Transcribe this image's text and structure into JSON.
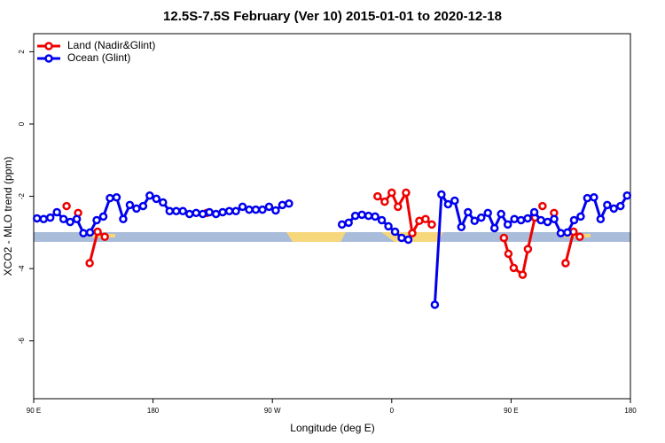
{
  "chart_data": {
    "type": "line",
    "title": "12.5S-7.5S February (Ver 10)   2015-01-01 to 2020-12-18",
    "x_label": "Longitude (deg E)",
    "y_label": "XCO2 - MLO trend (ppm)",
    "xlim": [
      90,
      540
    ],
    "xticks": [
      {
        "value": 90,
        "label": "90 E"
      },
      180,
      {
        "value": 270,
        "label": "90 W"
      },
      {
        "value": 360,
        "label": "0"
      },
      {
        "value": 450,
        "label": "90 E"
      },
      {
        "value": 540,
        "label": "180"
      }
    ],
    "ylim": [
      -7.6,
      2.5
    ],
    "yticks": [
      2,
      0,
      -2,
      -4,
      -6
    ],
    "legend": "top-left",
    "series": [
      {
        "name": "Land (Nadir&Glint)",
        "color": "#ee0000",
        "x": [
          114.8,
          null,
          123.5,
          null,
          132.2,
          138.2,
          143.6,
          null,
          220.6,
          null,
          349.3,
          354.7,
          360,
          364.7,
          370.8,
          375.5,
          380.8,
          385.5,
          390.2,
          null,
          444.6,
          448,
          452,
          458.7,
          462.7,
          468,
          null,
          473.7,
          null,
          482.4,
          null,
          491.1,
          497.1,
          501.8
        ],
        "values": [
          -2.27,
          null,
          -2.46,
          null,
          -3.85,
          -2.98,
          -3.12,
          null,
          -2.46,
          null,
          -2.0,
          -2.15,
          -1.9,
          -2.29,
          -1.9,
          -3.02,
          -2.68,
          -2.63,
          -2.78,
          null,
          -3.15,
          -3.59,
          -3.98,
          -4.17,
          -3.46,
          -2.59,
          null,
          -2.27,
          null,
          -2.46,
          null,
          -3.85,
          -2.98,
          -3.12
        ]
      },
      {
        "name": "Ocean (Glint)",
        "color": "#0000ee",
        "x": [
          92.5,
          97.5,
          102.5,
          107.5,
          112.5,
          117.5,
          122.5,
          127.5,
          132.5,
          137.5,
          142.5,
          147.5,
          152.5,
          157.5,
          162.5,
          167.5,
          172.5,
          177.5,
          182.5,
          187.5,
          192.5,
          197.5,
          202.5,
          207.5,
          212.5,
          217.5,
          222.5,
          227.5,
          232.5,
          237.5,
          242.5,
          247.5,
          252.5,
          257.5,
          262.5,
          267.5,
          272.5,
          277.5,
          282.5,
          null,
          322.5,
          327.5,
          332.5,
          337.5,
          342.5,
          347.5,
          352.5,
          357.5,
          362.5,
          367.5,
          372.5,
          null,
          392.5,
          397.5,
          402.5,
          407.5,
          412.5,
          417.5,
          422.5,
          427.5,
          432.5,
          437.5,
          442.5,
          447.5,
          452.5,
          457.5,
          462.5,
          467.5,
          472.5,
          477.5,
          482.5,
          487.5,
          492.5,
          497.5,
          502.5,
          507.5,
          512.5,
          517.5,
          522.5,
          527.5,
          532.5,
          537.5
        ],
        "values": [
          -2.61,
          -2.63,
          -2.59,
          -2.44,
          -2.63,
          -2.71,
          -2.63,
          -3.02,
          -3.0,
          -2.66,
          -2.56,
          -2.05,
          -2.03,
          -2.63,
          -2.24,
          -2.34,
          -2.27,
          -1.98,
          -2.07,
          -2.17,
          -2.41,
          -2.41,
          -2.41,
          -2.49,
          -2.46,
          -2.49,
          -2.44,
          -2.49,
          -2.44,
          -2.41,
          -2.41,
          -2.29,
          -2.37,
          -2.37,
          -2.37,
          -2.29,
          -2.39,
          -2.24,
          -2.2,
          null,
          -2.78,
          -2.73,
          -2.54,
          -2.51,
          -2.54,
          -2.56,
          -2.66,
          -2.83,
          -2.98,
          -3.15,
          -3.2,
          null,
          -5.0,
          -1.95,
          -2.22,
          -2.12,
          -2.85,
          -2.44,
          -2.68,
          -2.59,
          -2.46,
          -2.88,
          -2.49,
          -2.78,
          -2.63,
          -2.66,
          -2.61,
          -2.44,
          -2.66,
          -2.71,
          -2.63,
          -3.02,
          -3.0,
          -2.66,
          -2.56,
          -2.05,
          -2.03,
          -2.63,
          -2.24,
          -2.34,
          -2.27,
          -1.98
        ]
      }
    ]
  }
}
